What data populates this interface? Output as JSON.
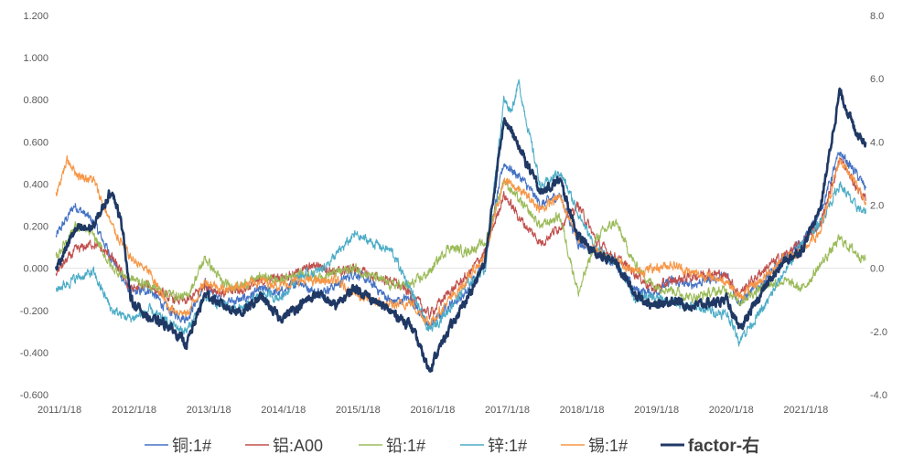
{
  "chart_data": {
    "type": "line",
    "title": "",
    "xlabel": "",
    "ylabel": "",
    "x_tick_labels": [
      "2011/1/18",
      "2012/1/18",
      "2013/1/18",
      "2014/1/18",
      "2015/1/18",
      "2016/1/18",
      "2017/1/18",
      "2018/1/18",
      "2019/1/18",
      "2020/1/18",
      "2021/1/18"
    ],
    "x_range": [
      "2011/1/18",
      "2021/11/01"
    ],
    "y_left": {
      "range": [
        -0.6,
        1.2
      ],
      "step": 0.2,
      "tick_labels": [
        "-0.600",
        "-0.400",
        "-0.200",
        "0.000",
        "0.200",
        "0.400",
        "0.600",
        "0.800",
        "1.000",
        "1.200"
      ]
    },
    "y_right": {
      "range": [
        -4.0,
        8.0
      ],
      "step": 2.0,
      "tick_labels": [
        "-4.0",
        "-2.0",
        "0.0",
        "2.0",
        "4.0",
        "6.0",
        "8.0"
      ]
    },
    "grid": false,
    "legend_position": "bottom",
    "series": [
      {
        "name": "铜:1#",
        "axis": "left",
        "color": "#4472C4",
        "width": 1.1,
        "points": [
          [
            2011.0,
            0.15
          ],
          [
            2011.25,
            0.3
          ],
          [
            2011.5,
            0.22
          ],
          [
            2011.75,
            0.05
          ],
          [
            2012.0,
            -0.12
          ],
          [
            2012.25,
            -0.1
          ],
          [
            2012.5,
            -0.2
          ],
          [
            2012.75,
            -0.24
          ],
          [
            2013.0,
            -0.08
          ],
          [
            2013.25,
            -0.16
          ],
          [
            2013.5,
            -0.15
          ],
          [
            2013.75,
            -0.1
          ],
          [
            2014.0,
            -0.12
          ],
          [
            2014.25,
            -0.06
          ],
          [
            2014.5,
            -0.12
          ],
          [
            2014.75,
            -0.08
          ],
          [
            2015.0,
            -0.02
          ],
          [
            2015.25,
            -0.08
          ],
          [
            2015.5,
            -0.16
          ],
          [
            2015.75,
            -0.14
          ],
          [
            2016.0,
            -0.28
          ],
          [
            2016.25,
            -0.18
          ],
          [
            2016.5,
            -0.12
          ],
          [
            2016.75,
            0.05
          ],
          [
            2017.0,
            0.5
          ],
          [
            2017.25,
            0.42
          ],
          [
            2017.5,
            0.3
          ],
          [
            2017.75,
            0.35
          ],
          [
            2018.0,
            0.12
          ],
          [
            2018.25,
            0.08
          ],
          [
            2018.5,
            0.02
          ],
          [
            2018.75,
            -0.1
          ],
          [
            2019.0,
            -0.12
          ],
          [
            2019.25,
            -0.06
          ],
          [
            2019.5,
            -0.08
          ],
          [
            2019.75,
            -0.05
          ],
          [
            2020.0,
            -0.04
          ],
          [
            2020.15,
            -0.16
          ],
          [
            2020.5,
            -0.06
          ],
          [
            2020.75,
            0.05
          ],
          [
            2021.0,
            0.12
          ],
          [
            2021.25,
            0.28
          ],
          [
            2021.5,
            0.55
          ],
          [
            2021.7,
            0.46
          ],
          [
            2021.85,
            0.38
          ]
        ]
      },
      {
        "name": "铝:A00",
        "axis": "left",
        "color": "#C0504D",
        "width": 1.1,
        "points": [
          [
            2011.0,
            -0.02
          ],
          [
            2011.25,
            0.08
          ],
          [
            2011.5,
            0.12
          ],
          [
            2011.75,
            0.05
          ],
          [
            2012.0,
            -0.1
          ],
          [
            2012.25,
            -0.08
          ],
          [
            2012.5,
            -0.14
          ],
          [
            2012.75,
            -0.16
          ],
          [
            2013.0,
            -0.08
          ],
          [
            2013.25,
            -0.12
          ],
          [
            2013.5,
            -0.1
          ],
          [
            2013.75,
            -0.06
          ],
          [
            2014.0,
            -0.04
          ],
          [
            2014.25,
            -0.02
          ],
          [
            2014.5,
            0.02
          ],
          [
            2014.75,
            -0.02
          ],
          [
            2015.0,
            0.0
          ],
          [
            2015.25,
            -0.04
          ],
          [
            2015.5,
            -0.06
          ],
          [
            2015.75,
            -0.12
          ],
          [
            2016.0,
            -0.22
          ],
          [
            2016.25,
            -0.12
          ],
          [
            2016.5,
            -0.04
          ],
          [
            2016.75,
            0.08
          ],
          [
            2017.0,
            0.35
          ],
          [
            2017.25,
            0.22
          ],
          [
            2017.5,
            0.12
          ],
          [
            2017.75,
            0.2
          ],
          [
            2018.0,
            0.3
          ],
          [
            2018.25,
            0.12
          ],
          [
            2018.5,
            0.05
          ],
          [
            2018.75,
            -0.02
          ],
          [
            2019.0,
            -0.1
          ],
          [
            2019.25,
            -0.06
          ],
          [
            2019.5,
            -0.04
          ],
          [
            2019.75,
            -0.02
          ],
          [
            2020.0,
            -0.04
          ],
          [
            2020.15,
            -0.12
          ],
          [
            2020.5,
            0.0
          ],
          [
            2020.75,
            0.06
          ],
          [
            2021.0,
            0.12
          ],
          [
            2021.25,
            0.22
          ],
          [
            2021.5,
            0.52
          ],
          [
            2021.7,
            0.4
          ],
          [
            2021.85,
            0.32
          ]
        ]
      },
      {
        "name": "铅:1#",
        "axis": "left",
        "color": "#9BBB59",
        "width": 1.1,
        "points": [
          [
            2011.0,
            0.05
          ],
          [
            2011.25,
            0.2
          ],
          [
            2011.5,
            0.16
          ],
          [
            2011.75,
            0.0
          ],
          [
            2012.0,
            -0.05
          ],
          [
            2012.25,
            -0.08
          ],
          [
            2012.5,
            -0.12
          ],
          [
            2012.75,
            -0.14
          ],
          [
            2013.0,
            0.05
          ],
          [
            2013.25,
            -0.08
          ],
          [
            2013.5,
            -0.08
          ],
          [
            2013.75,
            -0.04
          ],
          [
            2014.0,
            -0.06
          ],
          [
            2014.25,
            -0.02
          ],
          [
            2014.5,
            -0.04
          ],
          [
            2014.75,
            -0.02
          ],
          [
            2015.0,
            0.0
          ],
          [
            2015.25,
            -0.04
          ],
          [
            2015.5,
            -0.08
          ],
          [
            2015.75,
            -0.08
          ],
          [
            2016.0,
            -0.02
          ],
          [
            2016.25,
            0.1
          ],
          [
            2016.5,
            0.08
          ],
          [
            2016.75,
            0.12
          ],
          [
            2017.0,
            0.42
          ],
          [
            2017.25,
            0.3
          ],
          [
            2017.5,
            0.2
          ],
          [
            2017.75,
            0.25
          ],
          [
            2018.0,
            -0.12
          ],
          [
            2018.25,
            0.15
          ],
          [
            2018.5,
            0.22
          ],
          [
            2018.75,
            0.02
          ],
          [
            2019.0,
            -0.08
          ],
          [
            2019.25,
            -0.1
          ],
          [
            2019.5,
            -0.14
          ],
          [
            2019.75,
            -0.12
          ],
          [
            2020.0,
            -0.1
          ],
          [
            2020.15,
            -0.16
          ],
          [
            2020.5,
            -0.08
          ],
          [
            2020.75,
            -0.06
          ],
          [
            2021.0,
            -0.1
          ],
          [
            2021.25,
            0.02
          ],
          [
            2021.5,
            0.14
          ],
          [
            2021.7,
            0.08
          ],
          [
            2021.85,
            0.04
          ]
        ]
      },
      {
        "name": "锌:1#",
        "axis": "left",
        "color": "#4BACC6",
        "width": 1.1,
        "points": [
          [
            2011.0,
            -0.1
          ],
          [
            2011.25,
            -0.05
          ],
          [
            2011.5,
            -0.02
          ],
          [
            2011.75,
            -0.2
          ],
          [
            2012.0,
            -0.24
          ],
          [
            2012.25,
            -0.2
          ],
          [
            2012.5,
            -0.26
          ],
          [
            2012.75,
            -0.3
          ],
          [
            2013.0,
            -0.14
          ],
          [
            2013.25,
            -0.18
          ],
          [
            2013.5,
            -0.2
          ],
          [
            2013.75,
            -0.12
          ],
          [
            2014.0,
            -0.14
          ],
          [
            2014.25,
            -0.04
          ],
          [
            2014.5,
            -0.02
          ],
          [
            2014.75,
            0.06
          ],
          [
            2015.0,
            0.16
          ],
          [
            2015.25,
            0.12
          ],
          [
            2015.5,
            0.08
          ],
          [
            2015.75,
            -0.1
          ],
          [
            2016.0,
            -0.3
          ],
          [
            2016.25,
            -0.2
          ],
          [
            2016.5,
            -0.08
          ],
          [
            2016.75,
            0.0
          ],
          [
            2017.0,
            0.8
          ],
          [
            2017.1,
            0.75
          ],
          [
            2017.2,
            0.88
          ],
          [
            2017.35,
            0.62
          ],
          [
            2017.5,
            0.38
          ],
          [
            2017.75,
            0.46
          ],
          [
            2018.0,
            0.26
          ],
          [
            2018.25,
            0.08
          ],
          [
            2018.5,
            0.04
          ],
          [
            2018.75,
            -0.14
          ],
          [
            2019.0,
            -0.14
          ],
          [
            2019.25,
            -0.16
          ],
          [
            2019.5,
            -0.18
          ],
          [
            2019.75,
            -0.2
          ],
          [
            2020.0,
            -0.22
          ],
          [
            2020.15,
            -0.34
          ],
          [
            2020.5,
            -0.18
          ],
          [
            2020.75,
            -0.02
          ],
          [
            2021.0,
            0.12
          ],
          [
            2021.25,
            0.22
          ],
          [
            2021.5,
            0.4
          ],
          [
            2021.7,
            0.3
          ],
          [
            2021.85,
            0.26
          ]
        ]
      },
      {
        "name": "锡:1#",
        "axis": "left",
        "color": "#F79646",
        "width": 1.1,
        "points": [
          [
            2011.0,
            0.35
          ],
          [
            2011.15,
            0.52
          ],
          [
            2011.3,
            0.44
          ],
          [
            2011.5,
            0.42
          ],
          [
            2011.75,
            0.2
          ],
          [
            2012.0,
            0.05
          ],
          [
            2012.25,
            -0.02
          ],
          [
            2012.5,
            -0.18
          ],
          [
            2012.75,
            -0.22
          ],
          [
            2013.0,
            -0.06
          ],
          [
            2013.25,
            -0.1
          ],
          [
            2013.5,
            -0.08
          ],
          [
            2013.75,
            -0.06
          ],
          [
            2014.0,
            -0.08
          ],
          [
            2014.25,
            -0.06
          ],
          [
            2014.5,
            -0.06
          ],
          [
            2014.75,
            -0.06
          ],
          [
            2015.0,
            -0.12
          ],
          [
            2015.25,
            -0.16
          ],
          [
            2015.5,
            -0.18
          ],
          [
            2015.75,
            -0.16
          ],
          [
            2016.0,
            -0.26
          ],
          [
            2016.25,
            -0.16
          ],
          [
            2016.5,
            -0.06
          ],
          [
            2016.75,
            0.06
          ],
          [
            2017.0,
            0.42
          ],
          [
            2017.25,
            0.36
          ],
          [
            2017.5,
            0.28
          ],
          [
            2017.75,
            0.34
          ],
          [
            2018.0,
            0.14
          ],
          [
            2018.25,
            0.08
          ],
          [
            2018.5,
            0.04
          ],
          [
            2018.75,
            -0.02
          ],
          [
            2019.0,
            0.0
          ],
          [
            2019.25,
            0.02
          ],
          [
            2019.5,
            -0.02
          ],
          [
            2019.75,
            -0.04
          ],
          [
            2020.0,
            -0.06
          ],
          [
            2020.15,
            -0.14
          ],
          [
            2020.5,
            -0.04
          ],
          [
            2020.75,
            0.05
          ],
          [
            2021.0,
            0.08
          ],
          [
            2021.25,
            0.18
          ],
          [
            2021.5,
            0.52
          ],
          [
            2021.7,
            0.42
          ],
          [
            2021.85,
            0.3
          ]
        ]
      },
      {
        "name": "factor-右",
        "axis": "right",
        "color": "#1F3864",
        "width": 2.6,
        "points": [
          [
            2011.0,
            0.0
          ],
          [
            2011.25,
            1.2
          ],
          [
            2011.5,
            1.3
          ],
          [
            2011.75,
            2.5
          ],
          [
            2011.9,
            1.2
          ],
          [
            2012.0,
            -1.0
          ],
          [
            2012.25,
            -1.6
          ],
          [
            2012.5,
            -1.8
          ],
          [
            2012.75,
            -2.4
          ],
          [
            2013.0,
            -0.8
          ],
          [
            2013.25,
            -1.2
          ],
          [
            2013.5,
            -1.4
          ],
          [
            2013.75,
            -0.9
          ],
          [
            2014.0,
            -1.6
          ],
          [
            2014.25,
            -1.2
          ],
          [
            2014.5,
            -0.8
          ],
          [
            2014.75,
            -1.2
          ],
          [
            2015.0,
            -0.6
          ],
          [
            2015.25,
            -1.0
          ],
          [
            2015.5,
            -1.4
          ],
          [
            2015.75,
            -1.8
          ],
          [
            2016.0,
            -3.2
          ],
          [
            2016.25,
            -2.0
          ],
          [
            2016.5,
            -1.0
          ],
          [
            2016.75,
            0.2
          ],
          [
            2017.0,
            4.8
          ],
          [
            2017.25,
            3.6
          ],
          [
            2017.5,
            2.4
          ],
          [
            2017.75,
            2.8
          ],
          [
            2018.0,
            1.0
          ],
          [
            2018.25,
            0.4
          ],
          [
            2018.5,
            0.2
          ],
          [
            2018.75,
            -0.8
          ],
          [
            2019.0,
            -1.2
          ],
          [
            2019.25,
            -1.0
          ],
          [
            2019.5,
            -1.2
          ],
          [
            2019.75,
            -1.1
          ],
          [
            2020.0,
            -1.0
          ],
          [
            2020.15,
            -2.0
          ],
          [
            2020.5,
            -0.6
          ],
          [
            2020.75,
            0.2
          ],
          [
            2021.0,
            0.6
          ],
          [
            2021.25,
            2.0
          ],
          [
            2021.5,
            5.6
          ],
          [
            2021.7,
            4.4
          ],
          [
            2021.85,
            4.0
          ]
        ]
      }
    ]
  }
}
